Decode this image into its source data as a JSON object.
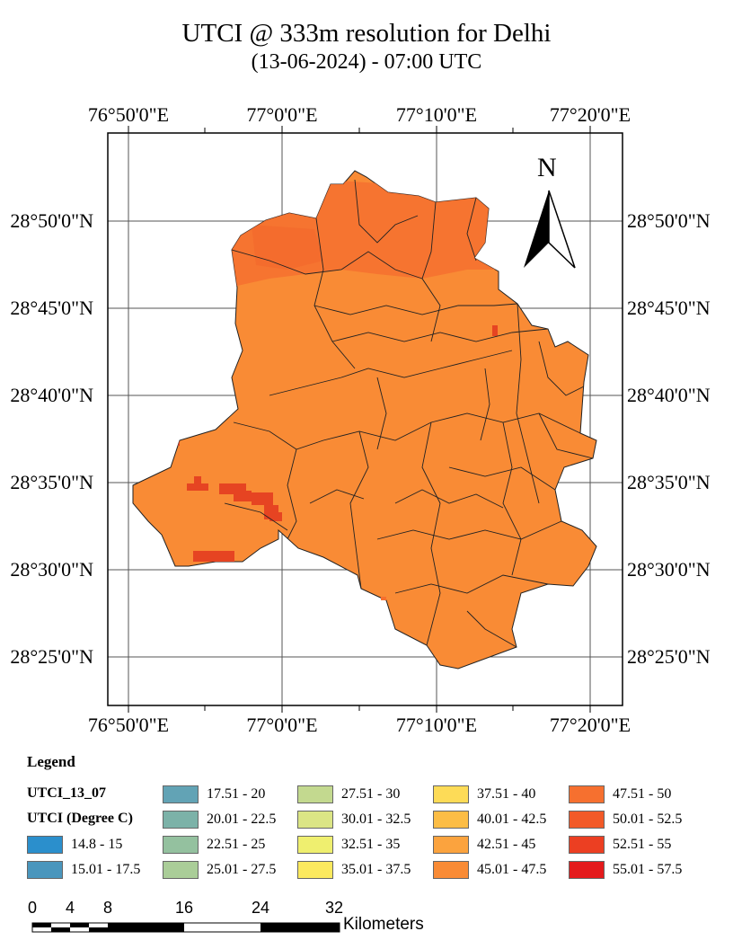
{
  "title": "UTCI @ 333m resolution for Delhi",
  "subtitle": "(13-06-2024) - 07:00 UTC",
  "north_label": "N",
  "graticule": {
    "top": [
      "76°50'0\"E",
      "77°0'0\"E",
      "77°10'0\"E",
      "77°20'0\"E"
    ],
    "bottom": [
      "76°50'0\"E",
      "77°0'0\"E",
      "77°10'0\"E",
      "77°20'0\"E"
    ],
    "left": [
      "28°50'0\"N",
      "28°45'0\"N",
      "28°40'0\"N",
      "28°35'0\"N",
      "28°30'0\"N",
      "28°25'0\"N"
    ],
    "right": [
      "28°50'0\"N",
      "28°45'0\"N",
      "28°40'0\"N",
      "28°35'0\"N",
      "28°30'0\"N",
      "28°25'0\"N"
    ]
  },
  "legend": {
    "title": "Legend",
    "layer": "UTCI_13_07",
    "field": "UTCI (Degree C)",
    "classes": [
      {
        "label": "14.8 - 15",
        "color": "#2b8fcc"
      },
      {
        "label": "15.01 - 17.5",
        "color": "#4a96bd"
      },
      {
        "label": "17.51 - 20",
        "color": "#62a3b5"
      },
      {
        "label": "20.01 - 22.5",
        "color": "#7cb2a8"
      },
      {
        "label": "22.51 - 25",
        "color": "#94c19f"
      },
      {
        "label": "25.01 - 27.5",
        "color": "#aacd98"
      },
      {
        "label": "27.51 - 30",
        "color": "#c3d98f"
      },
      {
        "label": "30.01 - 32.5",
        "color": "#dbe585"
      },
      {
        "label": "32.51 - 35",
        "color": "#efef6f"
      },
      {
        "label": "35.01 - 37.5",
        "color": "#fbe95e"
      },
      {
        "label": "37.51 - 40",
        "color": "#fddb57"
      },
      {
        "label": "40.01 - 42.5",
        "color": "#fcbd45"
      },
      {
        "label": "42.51 - 45",
        "color": "#fba33e"
      },
      {
        "label": "45.01 - 47.5",
        "color": "#f98b35"
      },
      {
        "label": "47.51 - 50",
        "color": "#f6702f"
      },
      {
        "label": "50.01 - 52.5",
        "color": "#f25a28"
      },
      {
        "label": "52.51 - 55",
        "color": "#ec3f22"
      },
      {
        "label": "55.01 - 57.5",
        "color": "#e41a1c"
      }
    ]
  },
  "scalebar": {
    "ticks": [
      "0",
      "4",
      "8",
      "16",
      "24",
      "32"
    ],
    "unit": "Kilometers"
  },
  "colors": {
    "main_fill": "#f98b35",
    "north_zone": "#f6702f",
    "hotspot": "#e64422"
  }
}
